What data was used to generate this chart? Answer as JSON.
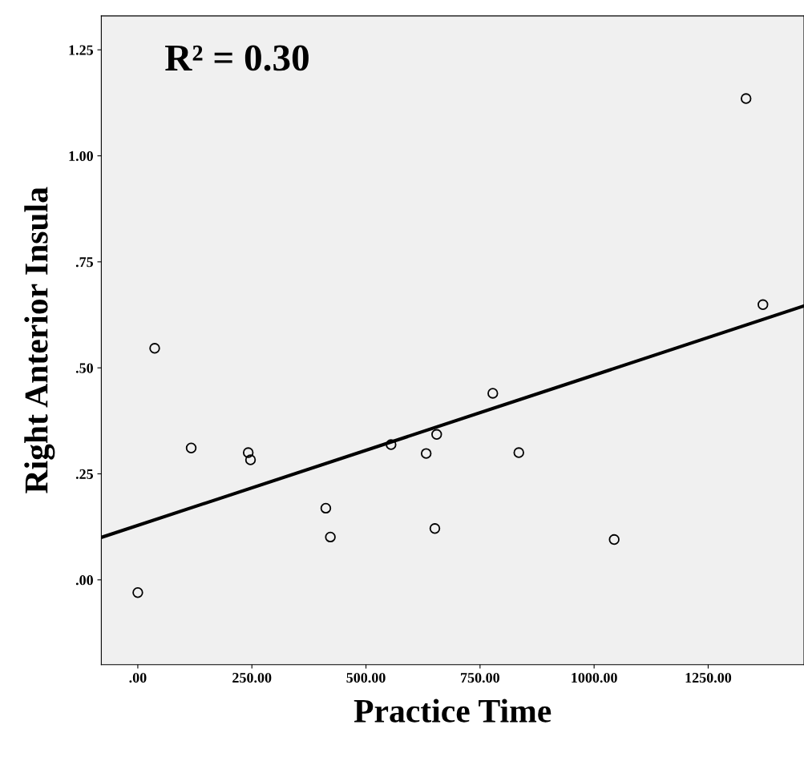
{
  "chart_data": {
    "type": "scatter",
    "xlabel": "Practice Time",
    "ylabel": "Right Anterior Insula",
    "annotations": [
      "R² = 0.30"
    ],
    "xlim": [
      -80,
      1460
    ],
    "ylim": [
      -0.2,
      1.33
    ],
    "xticks": [
      {
        "value": 0,
        "label": ".00"
      },
      {
        "value": 250,
        "label": "250.00"
      },
      {
        "value": 500,
        "label": "500.00"
      },
      {
        "value": 750,
        "label": "750.00"
      },
      {
        "value": 1000,
        "label": "1000.00"
      },
      {
        "value": 1250,
        "label": "1250.00"
      }
    ],
    "yticks": [
      {
        "value": 0,
        "label": ".00"
      },
      {
        "value": 0.25,
        "label": ".25"
      },
      {
        "value": 0.5,
        "label": ".50"
      },
      {
        "value": 0.75,
        "label": ".75"
      },
      {
        "value": 1,
        "label": "1.00"
      },
      {
        "value": 1.25,
        "label": "1.25"
      }
    ],
    "grid": false,
    "series": [
      {
        "marker": "circle",
        "color": "#000000",
        "x": [
          0,
          37,
          117,
          242,
          247,
          412,
          422,
          555,
          632,
          655,
          651,
          778,
          835,
          1044,
          1333,
          1370
        ],
        "values": [
          -0.03,
          0.546,
          0.311,
          0.3,
          0.283,
          0.169,
          0.101,
          0.319,
          0.298,
          0.343,
          0.121,
          0.44,
          0.3,
          0.095,
          1.135,
          0.649
        ]
      },
      {
        "type": "line",
        "color": "#000000",
        "x": [
          -80,
          1460
        ],
        "values": [
          0.1,
          0.646
        ]
      }
    ]
  }
}
